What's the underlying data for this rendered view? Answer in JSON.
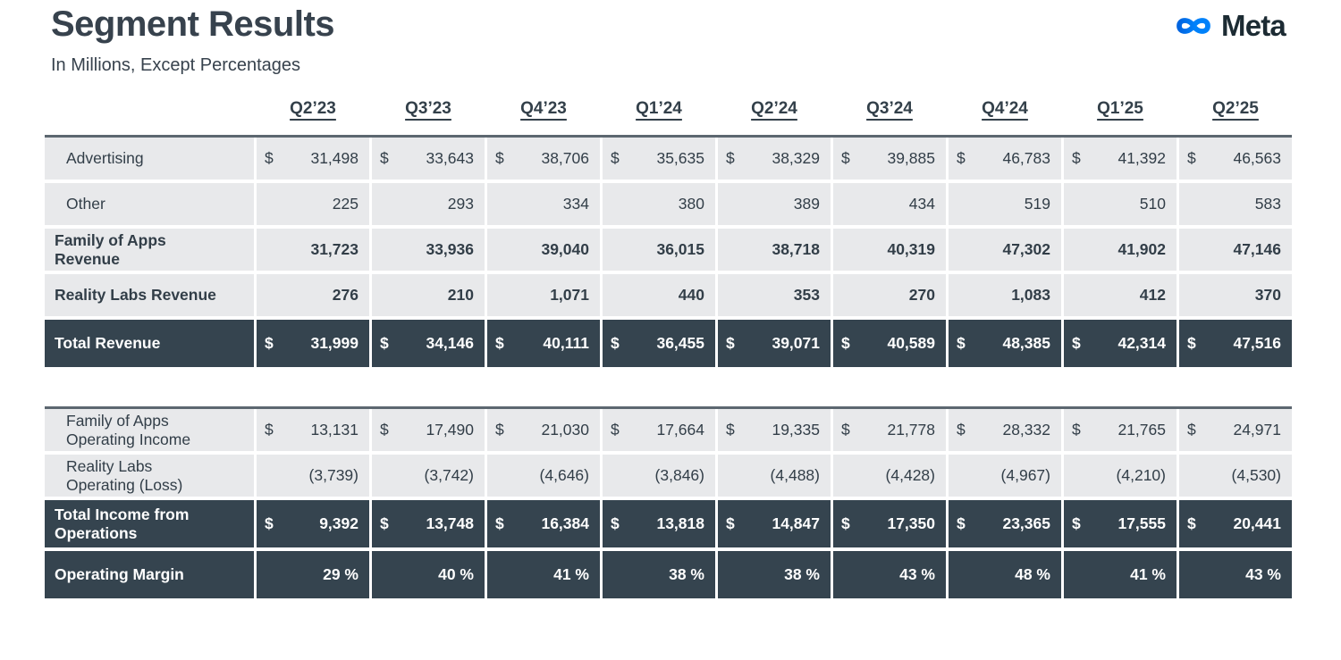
{
  "page": {
    "title": "Segment Results",
    "subtitle": "In Millions, Except Percentages"
  },
  "logo": {
    "brand": "Meta",
    "icon": "meta-infinity-icon",
    "blue_start": "#0064E0",
    "blue_end": "#0082FB",
    "wordmark_color": "#1C2B33"
  },
  "colors": {
    "dark_row_bg": "#35444F",
    "light_row_bg": "#E8E9EB",
    "text": "#33404A",
    "section_top_border": "#5C6770"
  },
  "table": {
    "quarters": [
      "Q2’23",
      "Q3’23",
      "Q4’23",
      "Q1’24",
      "Q2’24",
      "Q3’24",
      "Q4’24",
      "Q1’25",
      "Q2’25"
    ],
    "sections": [
      {
        "rows": [
          {
            "label_lines": [
              "Advertising"
            ],
            "bold": false,
            "dark": false,
            "dollar": true,
            "values": [
              "31,498",
              "33,643",
              "38,706",
              "35,635",
              "38,329",
              "39,885",
              "46,783",
              "41,392",
              "46,563"
            ]
          },
          {
            "label_lines": [
              "Other"
            ],
            "bold": false,
            "dark": false,
            "dollar": false,
            "values": [
              "225",
              "293",
              "334",
              "380",
              "389",
              "434",
              "519",
              "510",
              "583"
            ]
          },
          {
            "label_lines": [
              "Family of Apps",
              "Revenue"
            ],
            "bold": true,
            "dark": false,
            "dollar": false,
            "values": [
              "31,723",
              "33,936",
              "39,040",
              "36,015",
              "38,718",
              "40,319",
              "47,302",
              "41,902",
              "47,146"
            ]
          },
          {
            "label_lines": [
              "Reality Labs Revenue"
            ],
            "bold": true,
            "dark": false,
            "dollar": false,
            "values": [
              "276",
              "210",
              "1,071",
              "440",
              "353",
              "270",
              "1,083",
              "412",
              "370"
            ]
          },
          {
            "label_lines": [
              "Total Revenue"
            ],
            "bold": true,
            "dark": true,
            "dollar": true,
            "values": [
              "31,999",
              "34,146",
              "40,111",
              "36,455",
              "39,071",
              "40,589",
              "48,385",
              "42,314",
              "47,516"
            ]
          }
        ]
      },
      {
        "rows": [
          {
            "label_lines": [
              "Family of Apps",
              "Operating Income"
            ],
            "bold": false,
            "dark": false,
            "dollar": true,
            "values": [
              "13,131",
              "17,490",
              "21,030",
              "17,664",
              "19,335",
              "21,778",
              "28,332",
              "21,765",
              "24,971"
            ]
          },
          {
            "label_lines": [
              "Reality Labs",
              "Operating (Loss)"
            ],
            "bold": false,
            "dark": false,
            "dollar": false,
            "values": [
              "(3,739)",
              "(3,742)",
              "(4,646)",
              "(3,846)",
              "(4,488)",
              "(4,428)",
              "(4,967)",
              "(4,210)",
              "(4,530)"
            ]
          },
          {
            "label_lines": [
              "Total Income from",
              "Operations"
            ],
            "bold": true,
            "dark": true,
            "dollar": true,
            "values": [
              "9,392",
              "13,748",
              "16,384",
              "13,818",
              "14,847",
              "17,350",
              "23,365",
              "17,555",
              "20,441"
            ]
          },
          {
            "label_lines": [
              "Operating Margin"
            ],
            "bold": true,
            "dark": true,
            "dollar": false,
            "values": [
              "29 %",
              "40 %",
              "41 %",
              "38 %",
              "38 %",
              "43 %",
              "48 %",
              "41 %",
              "43 %"
            ]
          }
        ]
      }
    ]
  }
}
